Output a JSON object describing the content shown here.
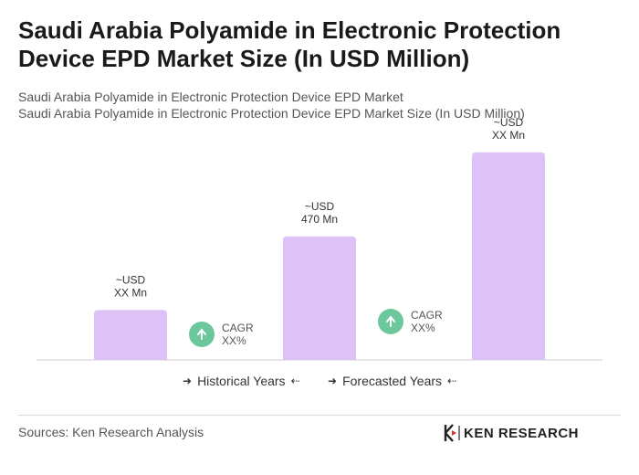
{
  "title": "Saudi Arabia Polyamide in Electronic Protection Device EPD Market Size (In USD Million)",
  "subtitle_1": "Saudi Arabia Polyamide in Electronic Protection Device EPD Market",
  "subtitle_2": "Saudi Arabia Polyamide in Electronic Protection Device EPD Market Size (In USD Million)",
  "legend": {
    "historical": "Historical Years",
    "forecasted": "Forecasted Years"
  },
  "sources": "Sources: Ken Research Analysis",
  "logo_text": "KEN RESEARCH",
  "colors": {
    "bar": "#dcc2f7",
    "cagr_circle": "#6cc79d",
    "axis": "#cccccc"
  },
  "chart_data": {
    "type": "bar",
    "categories": [
      "",
      "",
      ""
    ],
    "values": [
      190,
      470,
      790
    ],
    "value_labels": [
      [
        "~USD",
        "XX Mn"
      ],
      [
        "~USD",
        "470 Mn"
      ],
      [
        "~USD",
        "XX Mn"
      ]
    ],
    "cagr_annotations": [
      {
        "line1": "CAGR",
        "line2": "XX%"
      },
      {
        "line1": "CAGR",
        "line2": "XX%"
      }
    ],
    "title": "",
    "xlabel": "",
    "ylabel": "",
    "ylim": [
      0,
      800
    ],
    "grid": false
  }
}
